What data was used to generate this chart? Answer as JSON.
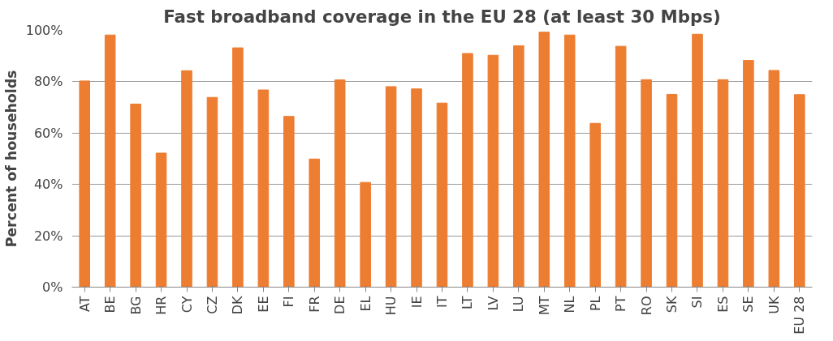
{
  "chart_data": {
    "type": "bar",
    "title": "Fast broadband coverage in the EU 28 (at least 30 Mbps)",
    "ylabel": "Percent of households",
    "categories": [
      "AT",
      "BE",
      "BG",
      "HR",
      "CY",
      "CZ",
      "DK",
      "EE",
      "FI",
      "FR",
      "DE",
      "EL",
      "HU",
      "IE",
      "IT",
      "LT",
      "LV",
      "LU",
      "MT",
      "NL",
      "PL",
      "PT",
      "RO",
      "SK",
      "SI",
      "ES",
      "SE",
      "UK",
      "EU 28"
    ],
    "values": [
      80.3,
      98.2,
      71.3,
      52.2,
      84.3,
      73.9,
      93.2,
      76.8,
      66.5,
      49.9,
      80.7,
      40.8,
      78.1,
      77.2,
      71.7,
      91.0,
      90.3,
      94.0,
      99.3,
      98.2,
      63.8,
      93.8,
      80.8,
      75.1,
      98.5,
      80.8,
      88.3,
      84.4,
      75.0
    ],
    "color": "#ed7d31",
    "ylim": [
      0,
      100
    ],
    "yticks": [
      {
        "value": 0,
        "label": "0%"
      },
      {
        "value": 20,
        "label": "20%"
      },
      {
        "value": 40,
        "label": "40%"
      },
      {
        "value": 60,
        "label": "60%"
      },
      {
        "value": 80,
        "label": "80%"
      },
      {
        "value": 100,
        "label": "100%"
      }
    ],
    "grid": "y"
  }
}
